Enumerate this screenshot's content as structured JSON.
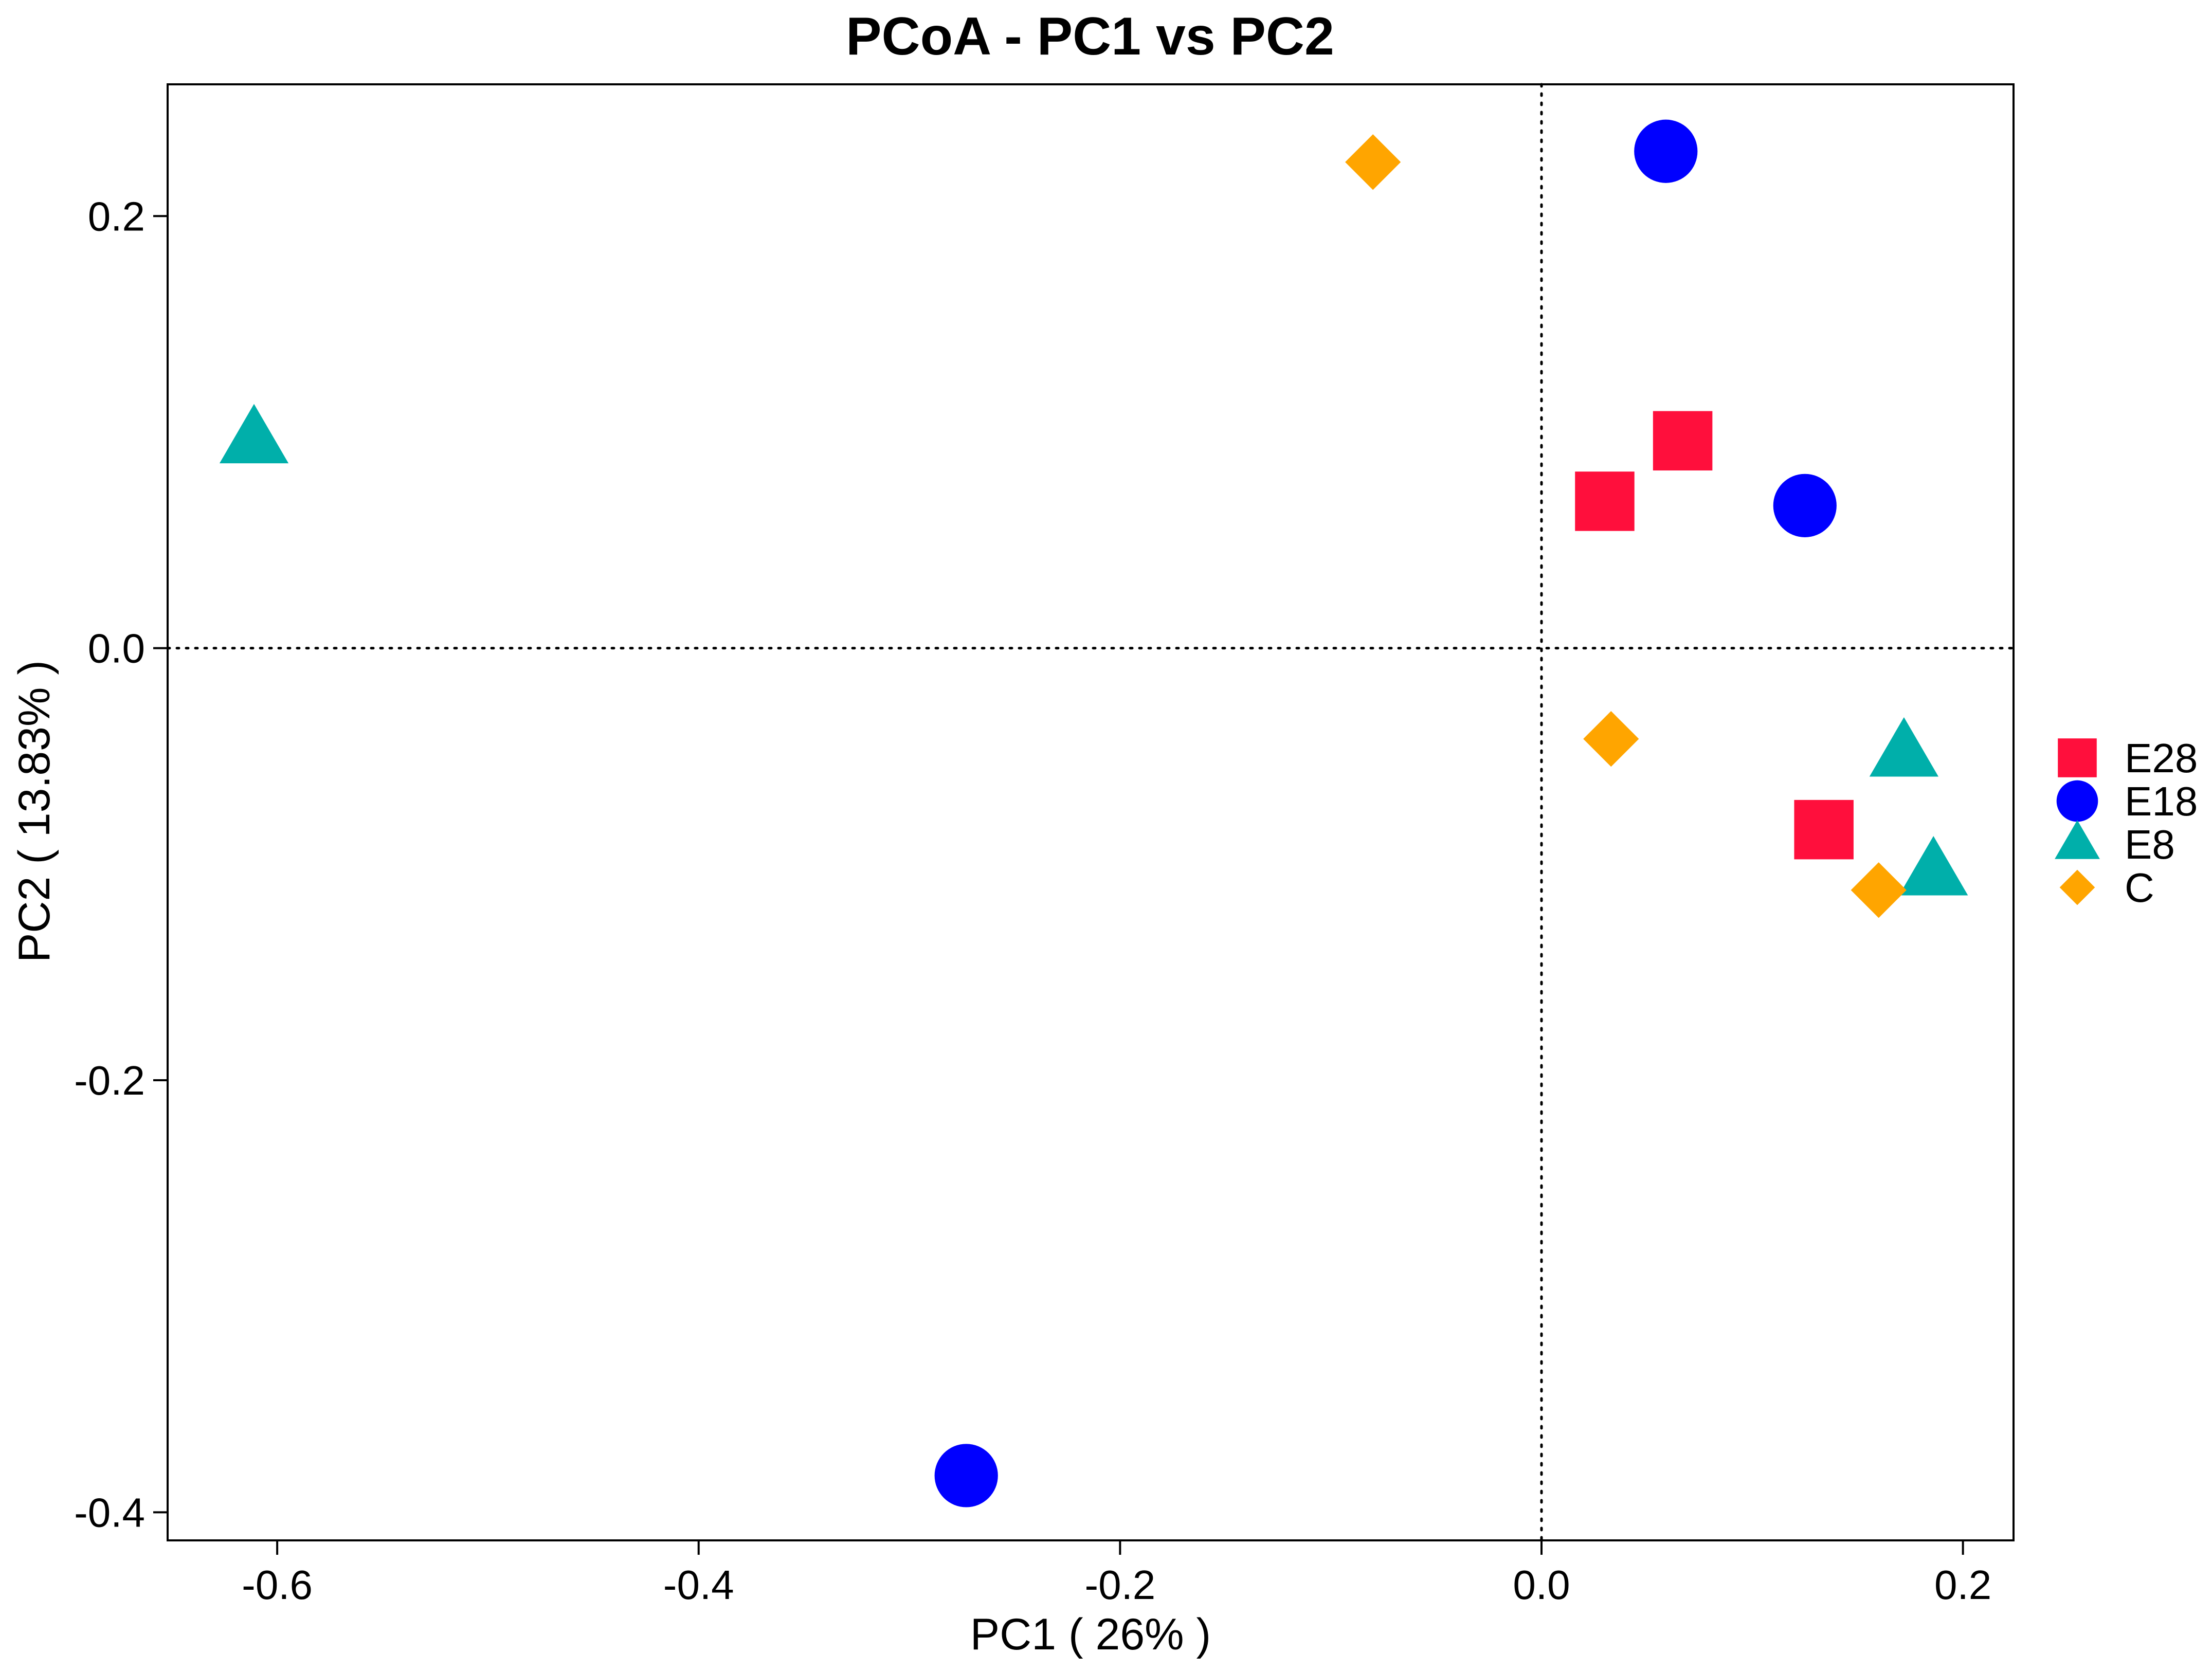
{
  "chart_data": {
    "type": "scatter",
    "title": "PCoA - PC1 vs PC2",
    "xlabel": "PC1 ( 26% )",
    "ylabel": "PC2 ( 13.83% )",
    "xlim": [
      -0.652,
      0.224
    ],
    "ylim": [
      -0.413,
      0.261
    ],
    "xticks": [
      -0.6,
      -0.4,
      -0.2,
      0.0,
      0.2
    ],
    "xtick_labels": [
      "-0.6",
      "-0.4",
      "-0.2",
      "0.0",
      "0.2"
    ],
    "yticks": [
      -0.4,
      -0.2,
      0.0,
      0.2
    ],
    "ytick_labels": [
      "-0.4",
      "-0.2",
      "0.0",
      "0.2"
    ],
    "reference_lines": {
      "x": 0,
      "y": 0,
      "style": "dotted"
    },
    "grid": false,
    "legend_position": "right",
    "series": [
      {
        "name": "E28",
        "shape": "square",
        "color": "#FF0F3C",
        "points": [
          {
            "x": 0.03,
            "y": 0.068
          },
          {
            "x": 0.067,
            "y": 0.096
          },
          {
            "x": 0.134,
            "y": -0.084
          }
        ]
      },
      {
        "name": "E18",
        "shape": "circle",
        "color": "#0000FF",
        "points": [
          {
            "x": 0.059,
            "y": 0.23
          },
          {
            "x": 0.125,
            "y": 0.066
          },
          {
            "x": -0.273,
            "y": -0.383
          }
        ]
      },
      {
        "name": "E8",
        "shape": "triangle",
        "color": "#00AFAA",
        "points": [
          {
            "x": -0.611,
            "y": 0.096
          },
          {
            "x": 0.172,
            "y": -0.049
          },
          {
            "x": 0.186,
            "y": -0.104
          }
        ]
      },
      {
        "name": "C",
        "shape": "diamond",
        "color": "#FFA500",
        "points": [
          {
            "x": -0.08,
            "y": 0.225
          },
          {
            "x": 0.033,
            "y": -0.042
          },
          {
            "x": 0.16,
            "y": -0.112
          }
        ]
      }
    ]
  }
}
